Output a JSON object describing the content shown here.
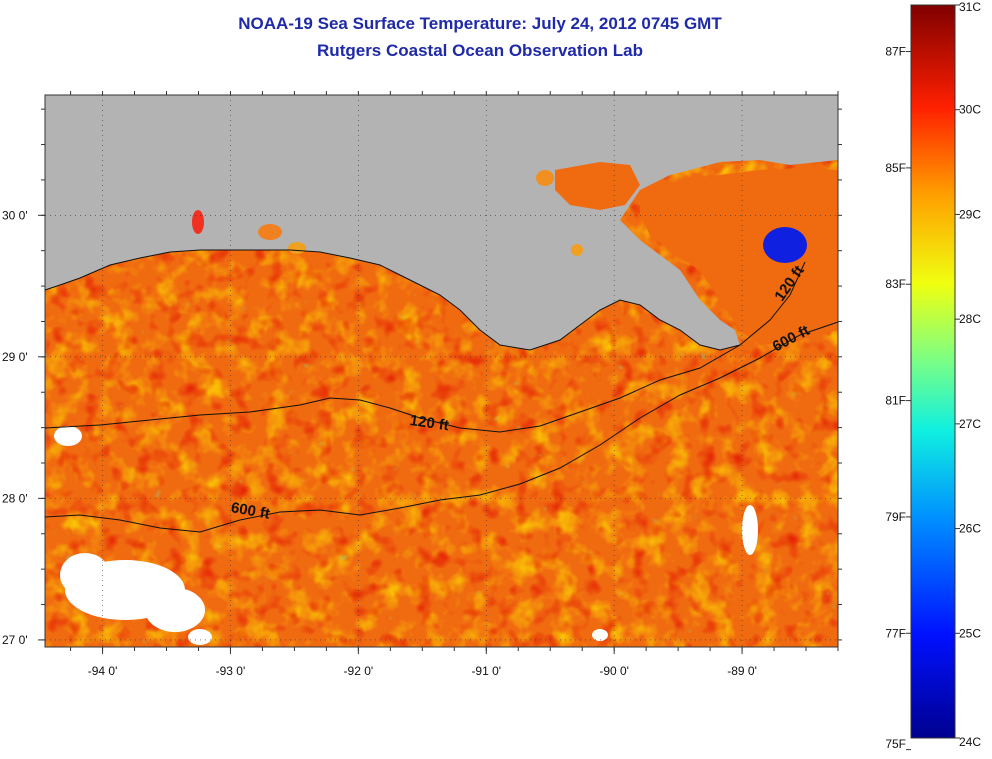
{
  "title_line1": "NOAA-19 Sea Surface Temperature:  July 24, 2012 0745 GMT",
  "title_line2": "Rutgers Coastal Ocean Observation Lab",
  "colors": {
    "land": "#b3b3b3",
    "title": "#1f2aa8",
    "contour": "#111111"
  },
  "map": {
    "lon_range": [
      -94.45,
      -88.25
    ],
    "lat_range": [
      26.95,
      30.85
    ],
    "lon_ticks": [
      {
        "value": -94,
        "label": "-94 0'"
      },
      {
        "value": -93,
        "label": "-93 0'"
      },
      {
        "value": -92,
        "label": "-92 0'"
      },
      {
        "value": -91,
        "label": "-91 0'"
      },
      {
        "value": -90,
        "label": "-90 0'"
      },
      {
        "value": -89,
        "label": "-89 0'"
      }
    ],
    "lat_ticks": [
      {
        "value": 27,
        "label": "27 0'"
      },
      {
        "value": 28,
        "label": "28 0'"
      },
      {
        "value": 29,
        "label": "29 0'"
      },
      {
        "value": 30,
        "label": "30 0'"
      }
    ],
    "contours": [
      {
        "label": "120 ft",
        "label_lon": -91.45,
        "label_lat": 28.5
      },
      {
        "label": "600 ft",
        "label_lon": -92.85,
        "label_lat": 27.88
      },
      {
        "label": "120 ft",
        "label_lon": -88.6,
        "label_lat": 29.5
      },
      {
        "label": "600 ft",
        "label_lon": -88.6,
        "label_lat": 29.1
      }
    ]
  },
  "colorbar": {
    "celsius_range": [
      24,
      31
    ],
    "celsius_labels": [
      "31C",
      "30C",
      "29C",
      "28C",
      "27C",
      "26C",
      "25C",
      "24C"
    ],
    "fahrenheit_labels": [
      {
        "value": 87,
        "label": "87F"
      },
      {
        "value": 85,
        "label": "85F"
      },
      {
        "value": 83,
        "label": "83F"
      },
      {
        "value": 81,
        "label": "81F"
      },
      {
        "value": 79,
        "label": "79F"
      },
      {
        "value": 77,
        "label": "77F"
      },
      {
        "value": 75,
        "label": "75F"
      }
    ]
  }
}
